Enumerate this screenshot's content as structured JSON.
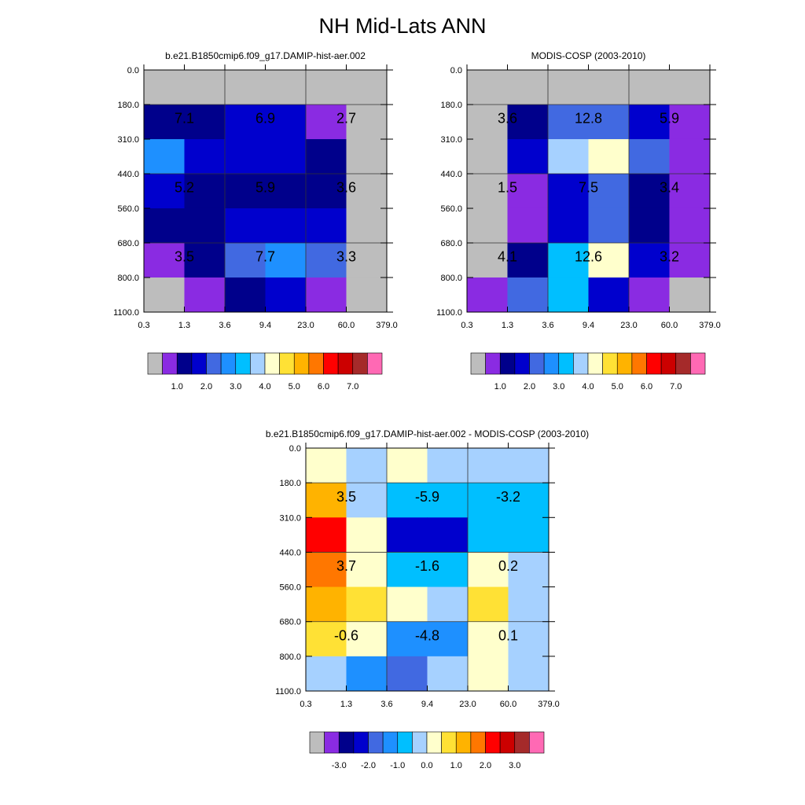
{
  "figure_title": "NH Mid-Lats ANN",
  "palette": {
    "bins": [
      "#bdbdbd",
      "#8a2be2",
      "#00008b",
      "#0000cd",
      "#4169e1",
      "#1e90ff",
      "#00bfff",
      "#a6d1ff",
      "#ffffcc",
      "#ffe135",
      "#ffb300",
      "#ff7700",
      "#ff0000",
      "#cc0000",
      "#a52a2a",
      "#ff69b4"
    ],
    "base_levels": [
      "1.0",
      "2.0",
      "3.0",
      "4.0",
      "5.0",
      "6.0",
      "7.0"
    ],
    "diff_levels": [
      "-3.0",
      "-2.0",
      "-1.0",
      "0.0",
      "1.0",
      "2.0",
      "3.0"
    ]
  },
  "chart_data": [
    {
      "type": "heatmap",
      "title": "b.e21.B1850cmip6.f09_g17.DAMIP-hist-aer.002",
      "x_ticks": [
        "0.3",
        "1.3",
        "3.6",
        "9.4",
        "23.0",
        "60.0",
        "379.0"
      ],
      "y_ticks": [
        "0.0",
        "180.0",
        "310.0",
        "440.0",
        "560.0",
        "680.0",
        "800.0",
        "1100.0"
      ],
      "cells": [
        [
          0,
          0,
          0,
          0,
          0,
          0
        ],
        [
          2,
          2,
          3,
          3,
          1,
          0
        ],
        [
          5,
          3,
          3,
          3,
          2,
          0
        ],
        [
          3,
          2,
          2,
          2,
          2,
          0
        ],
        [
          2,
          2,
          3,
          3,
          3,
          0
        ],
        [
          1,
          2,
          4,
          5,
          4,
          0
        ],
        [
          0,
          1,
          2,
          3,
          1,
          0
        ]
      ],
      "labels": [
        {
          "text": "7.1",
          "col": 0,
          "row": 1
        },
        {
          "text": "6.9",
          "col": 1,
          "row": 1
        },
        {
          "text": "2.7",
          "col": 2,
          "row": 1
        },
        {
          "text": "5.2",
          "col": 0,
          "row": 3
        },
        {
          "text": "5.9",
          "col": 1,
          "row": 3
        },
        {
          "text": "3.6",
          "col": 2,
          "row": 3
        },
        {
          "text": "3.5",
          "col": 0,
          "row": 5
        },
        {
          "text": "7.7",
          "col": 1,
          "row": 5
        },
        {
          "text": "3.3",
          "col": 2,
          "row": 5
        }
      ],
      "colorbar_levels": "base_levels"
    },
    {
      "type": "heatmap",
      "title": "MODIS-COSP (2003-2010)",
      "x_ticks": [
        "0.3",
        "1.3",
        "3.6",
        "9.4",
        "23.0",
        "60.0",
        "379.0"
      ],
      "y_ticks": [
        "0.0",
        "180.0",
        "310.0",
        "440.0",
        "560.0",
        "680.0",
        "800.0",
        "1100.0"
      ],
      "cells": [
        [
          0,
          0,
          0,
          0,
          0,
          0
        ],
        [
          0,
          2,
          4,
          4,
          3,
          1
        ],
        [
          0,
          3,
          7,
          8,
          4,
          1
        ],
        [
          0,
          1,
          3,
          4,
          2,
          1
        ],
        [
          0,
          1,
          3,
          4,
          2,
          1
        ],
        [
          0,
          2,
          6,
          8,
          3,
          1
        ],
        [
          1,
          4,
          6,
          3,
          1,
          0
        ]
      ],
      "labels": [
        {
          "text": "3.6",
          "col": 0,
          "row": 1
        },
        {
          "text": "12.8",
          "col": 1,
          "row": 1
        },
        {
          "text": "5.9",
          "col": 2,
          "row": 1
        },
        {
          "text": "1.5",
          "col": 0,
          "row": 3
        },
        {
          "text": "7.5",
          "col": 1,
          "row": 3
        },
        {
          "text": "3.4",
          "col": 2,
          "row": 3
        },
        {
          "text": "4.1",
          "col": 0,
          "row": 5
        },
        {
          "text": "12.6",
          "col": 1,
          "row": 5
        },
        {
          "text": "3.2",
          "col": 2,
          "row": 5
        }
      ],
      "colorbar_levels": "base_levels"
    },
    {
      "type": "heatmap",
      "title": "b.e21.B1850cmip6.f09_g17.DAMIP-hist-aer.002 - MODIS-COSP (2003-2010)",
      "x_ticks": [
        "0.3",
        "1.3",
        "3.6",
        "9.4",
        "23.0",
        "60.0",
        "379.0"
      ],
      "y_ticks": [
        "0.0",
        "180.0",
        "310.0",
        "440.0",
        "560.0",
        "680.0",
        "800.0",
        "1100.0"
      ],
      "cells": [
        [
          8,
          7,
          8,
          7,
          7,
          7
        ],
        [
          10,
          7,
          6,
          6,
          6,
          6
        ],
        [
          12,
          8,
          3,
          3,
          6,
          6
        ],
        [
          11,
          8,
          6,
          6,
          8,
          7
        ],
        [
          10,
          9,
          8,
          7,
          9,
          7
        ],
        [
          9,
          8,
          5,
          5,
          8,
          7
        ],
        [
          7,
          5,
          4,
          7,
          8,
          7
        ]
      ],
      "labels": [
        {
          "text": "3.5",
          "col": 0,
          "row": 1
        },
        {
          "text": "-5.9",
          "col": 1,
          "row": 1
        },
        {
          "text": "-3.2",
          "col": 2,
          "row": 1
        },
        {
          "text": "3.7",
          "col": 0,
          "row": 3
        },
        {
          "text": "-1.6",
          "col": 1,
          "row": 3
        },
        {
          "text": "0.2",
          "col": 2,
          "row": 3
        },
        {
          "text": "-0.6",
          "col": 0,
          "row": 5
        },
        {
          "text": "-4.8",
          "col": 1,
          "row": 5
        },
        {
          "text": "0.1",
          "col": 2,
          "row": 5
        }
      ],
      "colorbar_levels": "diff_levels"
    }
  ]
}
